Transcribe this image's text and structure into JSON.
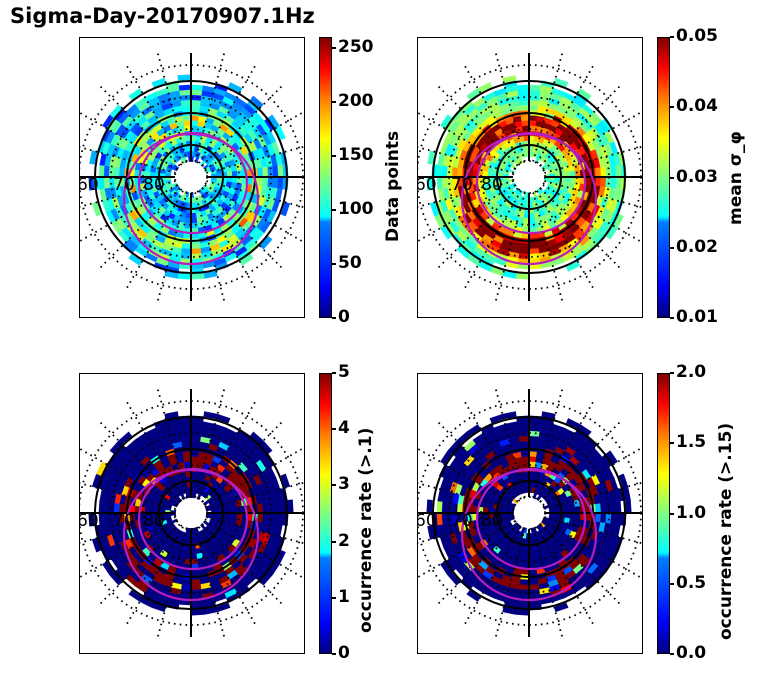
{
  "title": "Sigma-Day-20170907.1Hz",
  "chart_data": [
    {
      "type": "heatmap",
      "projection": "polar (magnetic latitude / MLT)",
      "title": "",
      "colorbar_label": "Data points",
      "clim": [
        0,
        260
      ],
      "colorbar_ticks": [
        "0",
        "50",
        "100",
        "150",
        "200",
        "250"
      ],
      "colorbar_tick_values": [
        0,
        50,
        100,
        150,
        200,
        250
      ],
      "lat_labels": [
        "60",
        "70",
        "80"
      ],
      "solid_lat_circles": [
        60,
        70,
        80
      ],
      "dotted_lat_circles": [
        55,
        65,
        75,
        85
      ],
      "colormap": "jet",
      "dominant_values": "mostly 20-120, peaks ~200 near dusk 70°"
    },
    {
      "type": "heatmap",
      "projection": "polar (magnetic latitude / MLT)",
      "colorbar_label": "mean σ_φ",
      "clim": [
        0.01,
        0.05
      ],
      "colorbar_ticks": [
        "0.01",
        "0.02",
        "0.03",
        "0.04",
        "0.05"
      ],
      "colorbar_tick_values": [
        0.01,
        0.02,
        0.03,
        0.04,
        0.05
      ],
      "lat_labels": [
        "60",
        "70",
        "80"
      ],
      "solid_lat_circles": [
        60,
        70,
        80
      ],
      "dotted_lat_circles": [
        55,
        65,
        75,
        85
      ],
      "colormap": "jet",
      "dominant_values": "0.025-0.03 at low latitude, saturating ≥0.05 in auroral oval 65-75°"
    },
    {
      "type": "heatmap",
      "projection": "polar (magnetic latitude / MLT)",
      "colorbar_label": "occurrence rate (>.1)",
      "clim": [
        0,
        5
      ],
      "colorbar_ticks": [
        "0",
        "1",
        "2",
        "3",
        "4",
        "5"
      ],
      "colorbar_tick_values": [
        0,
        1,
        2,
        3,
        4,
        5
      ],
      "lat_labels": [
        "60",
        "70",
        "80"
      ],
      "solid_lat_circles": [
        60,
        70,
        80
      ],
      "dotted_lat_circles": [
        55,
        65,
        75,
        85
      ],
      "colormap": "jet",
      "dominant_values": "mostly 0, saturated ≥5 in oval band"
    },
    {
      "type": "heatmap",
      "projection": "polar (magnetic latitude / MLT)",
      "colorbar_label": "occurrence rate (>.15)",
      "clim": [
        0.0,
        2.0
      ],
      "colorbar_ticks": [
        "0.0",
        "0.5",
        "1.0",
        "1.5",
        "2.0"
      ],
      "colorbar_tick_values": [
        0.0,
        0.5,
        1.0,
        1.5,
        2.0
      ],
      "lat_labels": [
        "60",
        "70",
        "80"
      ],
      "solid_lat_circles": [
        60,
        70,
        80
      ],
      "dotted_lat_circles": [
        55,
        65,
        75,
        85
      ],
      "colormap": "jet",
      "dominant_values": "mostly 0, saturated ≥2 in oval band"
    }
  ],
  "oval_color": "#b41ebe"
}
